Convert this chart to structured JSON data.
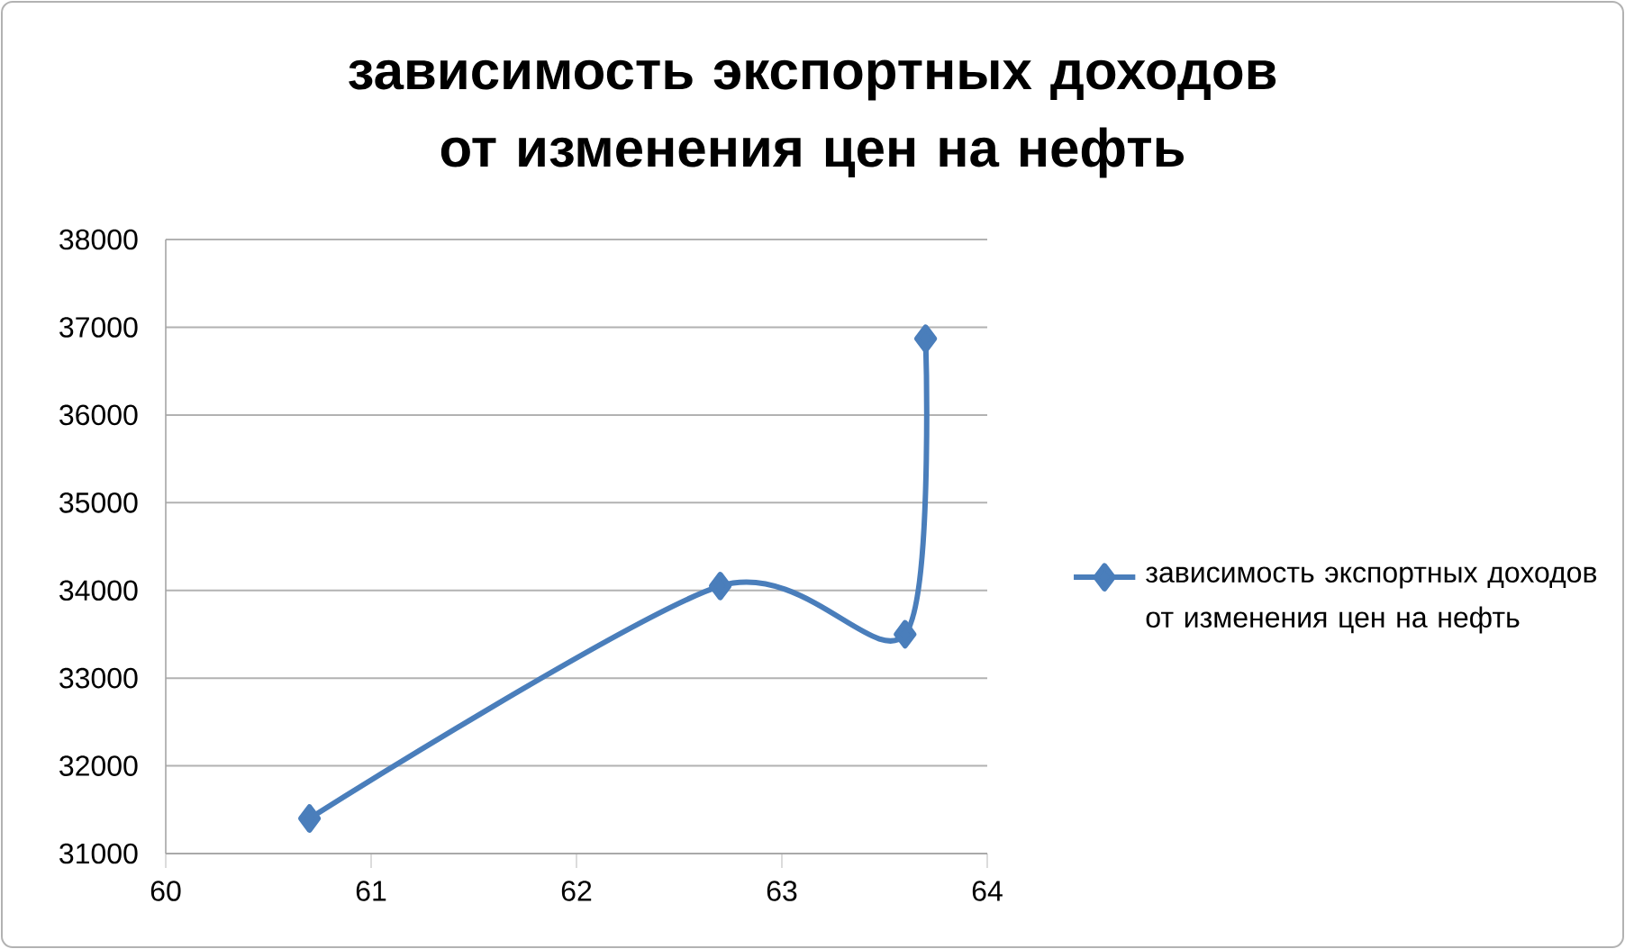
{
  "chart_data": {
    "type": "line",
    "title": "зависимость экспортных доходов от изменения цен на нефть",
    "x": [
      60.7,
      62.7,
      63.6,
      63.7
    ],
    "series": [
      {
        "name": "зависимость экспортных доходов от изменения цен на нефть",
        "color": "#4a7ebb",
        "values": [
          31400,
          34050,
          33500,
          36870
        ]
      }
    ],
    "xlim": [
      60,
      64
    ],
    "xticks": [
      60,
      61,
      62,
      63,
      64
    ],
    "ylim": [
      31000,
      38000
    ],
    "yticks": [
      31000,
      32000,
      33000,
      34000,
      35000,
      36000,
      37000,
      38000
    ],
    "grid": "y",
    "legend": "right",
    "marker": "diamond",
    "line_style": "solid"
  }
}
